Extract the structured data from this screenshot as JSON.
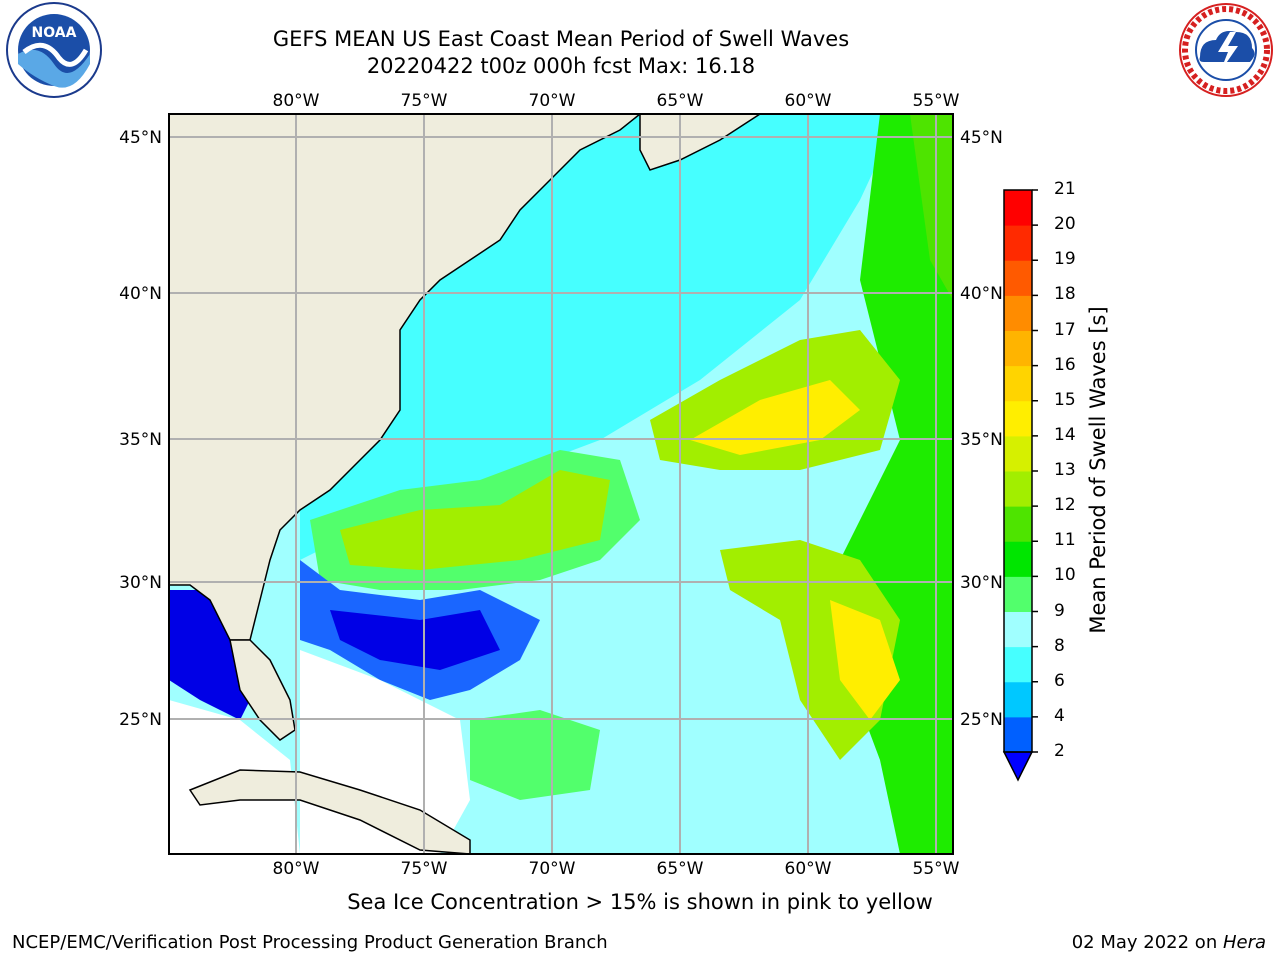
{
  "title": {
    "line1": "GEFS MEAN US East Coast Mean Period of Swell Waves",
    "line2": "20220422 t00z 000h fcst   Max: 16.18"
  },
  "map": {
    "lon_ticks": [
      "80°W",
      "75°W",
      "70°W",
      "65°W",
      "60°W",
      "55°W"
    ],
    "lat_ticks": [
      "45°N",
      "40°N",
      "35°N",
      "30°N",
      "25°N"
    ],
    "grid": true,
    "colors": {
      "land": "#efeddd",
      "sea_blue": "#0000e6",
      "sea_mid_blue": "#1a66ff",
      "sea_cyan": "#46ffff",
      "sea_light_cyan": "#a0ffff",
      "sea_green_light": "#52ff6c",
      "sea_green": "#1eec00",
      "sea_yellow_green": "#a2ee00",
      "sea_yellow": "#ffee00",
      "sea_orange": "#ffa800"
    }
  },
  "colorbar": {
    "label": "Mean Period of Swell Waves [s]",
    "ticks": [
      "2",
      "4",
      "6",
      "8",
      "9",
      "10",
      "11",
      "12",
      "13",
      "14",
      "15",
      "16",
      "17",
      "18",
      "19",
      "20",
      "21"
    ],
    "colors": [
      "#0060ff",
      "#00c8ff",
      "#46ffff",
      "#a0ffff",
      "#52ff6c",
      "#00e600",
      "#4ee400",
      "#a2ee00",
      "#d6f000",
      "#ffee00",
      "#ffd400",
      "#ffb400",
      "#ff8c00",
      "#ff5a00",
      "#ff2a00",
      "#ff0000"
    ],
    "extend_color": "#0000ff"
  },
  "note": "Sea Ice Concentration > 15% is shown in pink to yellow",
  "footer": {
    "left": "NCEP/EMC/Verification Post Processing Product Generation Branch",
    "right_date": "02 May 2022 on ",
    "right_machine": "Hera"
  },
  "logos": {
    "noaa": "NOAA",
    "nws": "NATIONAL WEATHER SERVICE"
  }
}
